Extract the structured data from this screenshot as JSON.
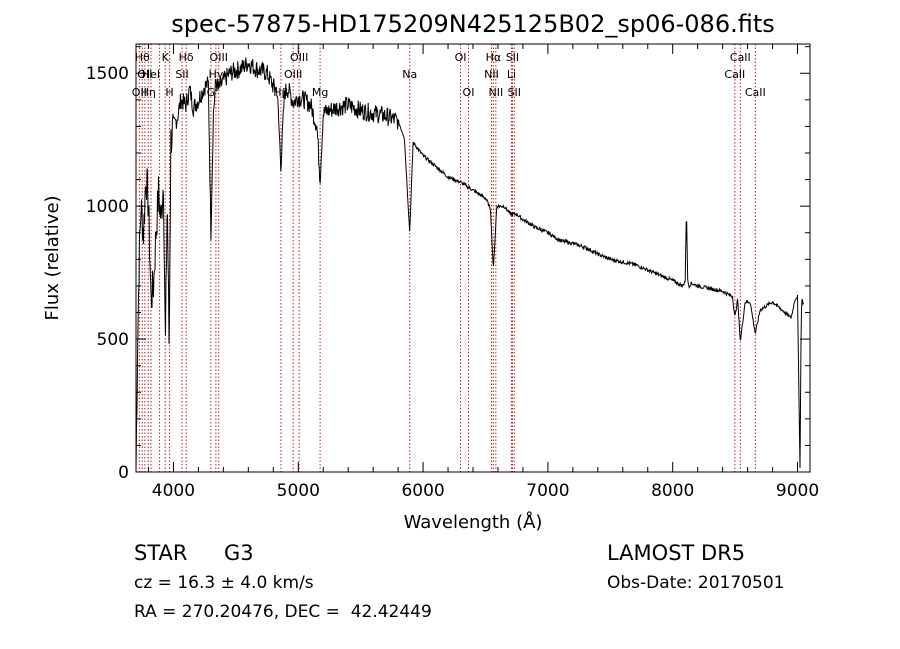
{
  "chart_data": {
    "type": "line",
    "title": "spec-57875-HD175209N425125B02_sp06-086.fits",
    "xlabel": "Wavelength (Å)",
    "ylabel": "Flux (relative)",
    "xlim": [
      3700,
      9100
    ],
    "ylim": [
      0,
      1610
    ],
    "xticks": [
      4000,
      5000,
      6000,
      7000,
      8000,
      9000
    ],
    "yticks": [
      0,
      500,
      1000,
      1500
    ],
    "grid": false,
    "line_color": "#000000",
    "marker_color": "#b22222",
    "series": [
      {
        "x": [
          3700,
          3712,
          3725,
          3740,
          3760,
          3780,
          3800,
          3820,
          3840,
          3860,
          3880,
          3900,
          3920,
          3935,
          3950,
          3965,
          3980,
          4000,
          4030,
          4060,
          4100,
          4130,
          4160,
          4200,
          4250,
          4280,
          4300,
          4320,
          4340,
          4360,
          4400,
          4450,
          4500,
          4550,
          4600,
          4650,
          4700,
          4750,
          4800,
          4830,
          4861,
          4890,
          4920,
          4960,
          5000,
          5050,
          5100,
          5150,
          5175,
          5200,
          5250,
          5300,
          5400,
          5500,
          5600,
          5700,
          5800,
          5850,
          5893,
          5920,
          6000,
          6100,
          6200,
          6300,
          6400,
          6500,
          6540,
          6563,
          6590,
          6650,
          6700,
          6750,
          6800,
          6900,
          7000,
          7100,
          7200,
          7300,
          7400,
          7500,
          7600,
          7700,
          7800,
          7900,
          8000,
          8080,
          8100,
          8110,
          8120,
          8130,
          8150,
          8200,
          8300,
          8400,
          8480,
          8498,
          8520,
          8542,
          8580,
          8620,
          8662,
          8700,
          8800,
          8900,
          8950,
          8980,
          9000,
          9020,
          9030,
          9035,
          9050
        ],
        "y": [
          0,
          450,
          800,
          1000,
          900,
          1120,
          1000,
          650,
          700,
          900,
          1050,
          950,
          1100,
          450,
          1050,
          450,
          1250,
          1300,
          1330,
          1400,
          1380,
          1440,
          1370,
          1400,
          1450,
          1460,
          900,
          1350,
          1470,
          1440,
          1470,
          1500,
          1510,
          1520,
          1540,
          1520,
          1510,
          1500,
          1450,
          1440,
          1150,
          1430,
          1440,
          1390,
          1410,
          1400,
          1380,
          1300,
          1100,
          1350,
          1360,
          1370,
          1380,
          1360,
          1350,
          1340,
          1320,
          1260,
          900,
          1240,
          1190,
          1150,
          1110,
          1090,
          1060,
          1030,
          990,
          760,
          1000,
          1000,
          970,
          970,
          950,
          920,
          900,
          870,
          860,
          845,
          820,
          800,
          790,
          780,
          760,
          740,
          720,
          700,
          720,
          1000,
          720,
          700,
          710,
          700,
          690,
          680,
          660,
          580,
          650,
          490,
          640,
          640,
          520,
          610,
          640,
          600,
          580,
          650,
          660,
          20,
          600,
          650,
          630
        ]
      }
    ],
    "line_markers": [
      {
        "wavelength": 3727,
        "labels": [
          {
            "text": "OII",
            "row": 2
          }
        ]
      },
      {
        "wavelength": 3750,
        "labels": [
          {
            "text": "Hθ",
            "row": 0
          }
        ]
      },
      {
        "wavelength": 3771,
        "labels": [
          {
            "text": "OII",
            "row": 1
          }
        ]
      },
      {
        "wavelength": 3798,
        "labels": [
          {
            "text": "Hη",
            "row": 2
          }
        ]
      },
      {
        "wavelength": 3820,
        "labels": [
          {
            "text": "HeI",
            "row": 1
          }
        ]
      },
      {
        "wavelength": 3889,
        "labels": [
          {
            "text": "",
            "row": 0
          }
        ]
      },
      {
        "wavelength": 3934,
        "labels": [
          {
            "text": "K",
            "row": 0
          }
        ]
      },
      {
        "wavelength": 3969,
        "labels": [
          {
            "text": "H",
            "row": 2
          }
        ]
      },
      {
        "wavelength": 4069,
        "labels": [
          {
            "text": "SII",
            "row": 1
          }
        ]
      },
      {
        "wavelength": 4102,
        "labels": [
          {
            "text": "Hδ",
            "row": 0
          }
        ]
      },
      {
        "wavelength": 4300,
        "labels": [
          {
            "text": "G",
            "row": 2
          }
        ]
      },
      {
        "wavelength": 4340,
        "labels": [
          {
            "text": "Hγ",
            "row": 1
          }
        ]
      },
      {
        "wavelength": 4363,
        "labels": [
          {
            "text": "OIII",
            "row": 0
          }
        ]
      },
      {
        "wavelength": 4861,
        "labels": [
          {
            "text": "Hβ",
            "row": 2
          }
        ]
      },
      {
        "wavelength": 4959,
        "labels": [
          {
            "text": "OIII",
            "row": 1
          }
        ]
      },
      {
        "wavelength": 5007,
        "labels": [
          {
            "text": "OIII",
            "row": 0
          }
        ]
      },
      {
        "wavelength": 5175,
        "labels": [
          {
            "text": "Mg",
            "row": 2
          }
        ]
      },
      {
        "wavelength": 5893,
        "labels": [
          {
            "text": "Na",
            "row": 1
          }
        ]
      },
      {
        "wavelength": 6300,
        "labels": [
          {
            "text": "OI",
            "row": 0
          }
        ]
      },
      {
        "wavelength": 6364,
        "labels": [
          {
            "text": "OI",
            "row": 2
          }
        ]
      },
      {
        "wavelength": 6548,
        "labels": [
          {
            "text": "NII",
            "row": 1
          }
        ]
      },
      {
        "wavelength": 6563,
        "labels": [
          {
            "text": "Hα",
            "row": 0
          }
        ]
      },
      {
        "wavelength": 6583,
        "labels": [
          {
            "text": "NII",
            "row": 2
          }
        ]
      },
      {
        "wavelength": 6708,
        "labels": [
          {
            "text": "Li",
            "row": 1
          }
        ]
      },
      {
        "wavelength": 6716,
        "labels": [
          {
            "text": "SII",
            "row": 0
          }
        ]
      },
      {
        "wavelength": 6731,
        "labels": [
          {
            "text": "SII",
            "row": 2
          }
        ]
      },
      {
        "wavelength": 8498,
        "labels": [
          {
            "text": "CaII",
            "row": 1
          }
        ]
      },
      {
        "wavelength": 8542,
        "labels": [
          {
            "text": "CaII",
            "row": 0
          }
        ]
      },
      {
        "wavelength": 8662,
        "labels": [
          {
            "text": "CaII",
            "row": 2
          }
        ]
      }
    ]
  },
  "info": {
    "object_class": "STAR",
    "subclass": "G3",
    "redshift": "cz = 16.3 ± 4.0 km/s",
    "coordinates": "RA = 270.20476, DEC =  42.42449",
    "survey": "LAMOST DR5",
    "obs_date": "Obs-Date: 20170501"
  }
}
